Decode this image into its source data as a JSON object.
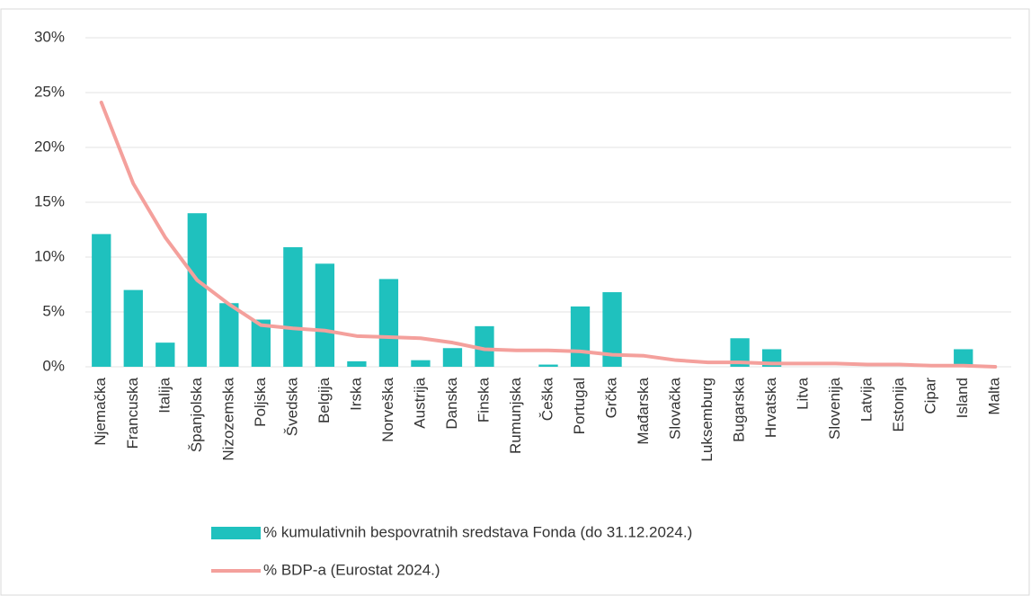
{
  "chart_data": {
    "type": "bar-line",
    "categories": [
      "Njemačka",
      "Francuska",
      "Italija",
      "Španjolska",
      "Nizozemska",
      "Poljska",
      "Švedska",
      "Belgija",
      "Irska",
      "Norveška",
      "Austrija",
      "Danska",
      "Finska",
      "Rumunjska",
      "Češka",
      "Portugal",
      "Grčka",
      "Mađarska",
      "Slovačka",
      "Luksemburg",
      "Bugarska",
      "Hrvatska",
      "Litva",
      "Slovenija",
      "Latvija",
      "Estonija",
      "Cipar",
      "Island",
      "Malta"
    ],
    "series": [
      {
        "name": "% kumulativnih bespovratnih sredstava Fonda (do 31.12.2024.)",
        "kind": "bar",
        "color": "#1fc1be",
        "values": [
          12.1,
          7.0,
          2.2,
          14.0,
          5.8,
          4.3,
          10.9,
          9.4,
          0.5,
          8.0,
          0.6,
          1.7,
          3.7,
          0,
          0.2,
          5.5,
          6.8,
          0,
          0,
          0,
          2.6,
          1.6,
          0,
          0,
          0,
          0,
          0,
          1.6,
          0
        ]
      },
      {
        "name": "% BDP-a (Eurostat 2024.)",
        "kind": "line",
        "color": "#f4a09c",
        "values": [
          24.1,
          16.7,
          11.8,
          7.9,
          5.7,
          3.8,
          3.5,
          3.3,
          2.8,
          2.7,
          2.6,
          2.2,
          1.6,
          1.5,
          1.5,
          1.4,
          1.1,
          1.0,
          0.6,
          0.4,
          0.4,
          0.3,
          0.3,
          0.3,
          0.2,
          0.2,
          0.1,
          0.1,
          0.0
        ]
      }
    ],
    "ylim": [
      0,
      30
    ],
    "yticks": [
      {
        "value": 0,
        "label": "0%"
      },
      {
        "value": 5,
        "label": "5%"
      },
      {
        "value": 10,
        "label": "10%"
      },
      {
        "value": 15,
        "label": "15%"
      },
      {
        "value": 20,
        "label": "20%"
      },
      {
        "value": 25,
        "label": "25%"
      },
      {
        "value": 30,
        "label": "30%"
      }
    ],
    "grid": true
  }
}
